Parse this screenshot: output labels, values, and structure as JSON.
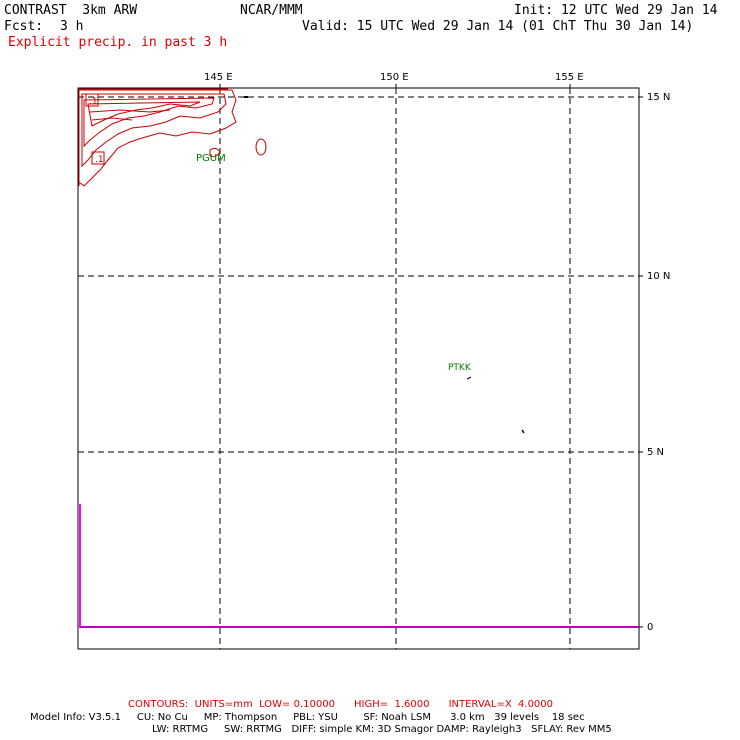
{
  "header": {
    "model_title": "CONTRAST  3km ARW",
    "center": "NCAR/MMM",
    "init": "Init: 12 UTC Wed 29 Jan 14",
    "fcst_label": "Fcst:",
    "fcst_value": "3 h",
    "valid": "Valid: 15 UTC Wed 29 Jan 14 (01 ChT Thu 30 Jan 14)",
    "field_title": "Explicit precip. in past 3 h"
  },
  "map": {
    "lon_labels": [
      "145 E",
      "150 E",
      "155 E"
    ],
    "lat_labels": [
      "15 N",
      "10 N",
      "5 N"
    ],
    "timeseries_zero_label": "0",
    "stations": [
      {
        "id": "PGUM",
        "label": "PGUM"
      },
      {
        "id": "PTKK",
        "label": "PTKK"
      }
    ],
    "contour_labels": [
      ".1",
      ".1"
    ],
    "colors": {
      "contour": "#cc0000",
      "station": "#007a00",
      "timeseries": "#ff00ff",
      "grid": "#000000"
    }
  },
  "footer": {
    "contours_line": "CONTOURS:  UNITS=mm  LOW= 0.10000      HIGH=  1.6000      INTERVAL=X  4.0000",
    "model_info_1": "Model Info: V3.5.1     CU: No Cu     MP: Thompson     PBL: YSU        SF: Noah LSM      3.0 km   39 levels    18 sec",
    "model_info_2": "LW: RRTMG     SW: RRTMG   DIFF: simple KM: 3D Smagor DAMP: Rayleigh3   SFLAY: Rev MM5"
  }
}
